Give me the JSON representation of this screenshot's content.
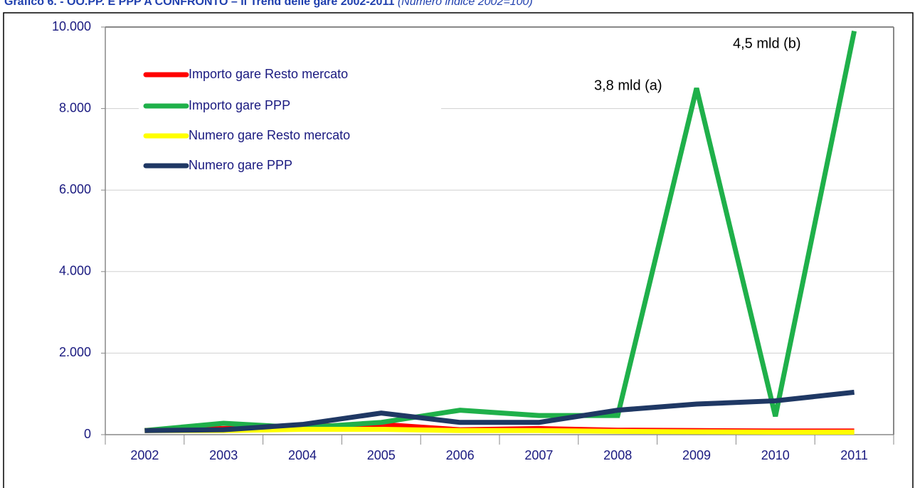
{
  "chart_data": {
    "type": "line",
    "title": "Grafico 6. - OO.PP. E PPP A CONFRONTO – Il Trend delle gare 2002-2011",
    "subtitle": "(Numero indice 2002=100)",
    "categories": [
      "2002",
      "2003",
      "2004",
      "2005",
      "2006",
      "2007",
      "2008",
      "2009",
      "2010",
      "2011"
    ],
    "series": [
      {
        "name": "Importo gare Resto mercato",
        "color": "#ff0000",
        "values": [
          100,
          150,
          200,
          250,
          120,
          150,
          110,
          100,
          90,
          90
        ]
      },
      {
        "name": "Importo gare PPP",
        "color": "#1fb04a",
        "values": [
          100,
          280,
          170,
          300,
          600,
          470,
          470,
          8500,
          450,
          9900
        ]
      },
      {
        "name": "Numero gare Resto mercato",
        "color": "#ffff00",
        "values": [
          100,
          100,
          130,
          130,
          100,
          100,
          80,
          70,
          60,
          60
        ]
      },
      {
        "name": "Numero gare PPP",
        "color": "#1f3864",
        "values": [
          100,
          120,
          250,
          530,
          300,
          300,
          600,
          750,
          830,
          1040
        ]
      }
    ],
    "ylim": [
      0,
      10000
    ],
    "yticks": [
      0,
      {
        "value": 2000,
        "label": "2.000"
      },
      {
        "value": 4000,
        "label": "4.000"
      },
      {
        "value": 6000,
        "label": "6.000"
      },
      {
        "value": 8000,
        "label": "8.000"
      },
      {
        "value": 10000,
        "label": "10.000"
      }
    ],
    "grid": true,
    "legend": "upper left",
    "annotations": [
      "3,8 mld (a)",
      "4,5 mld (b)"
    ]
  }
}
